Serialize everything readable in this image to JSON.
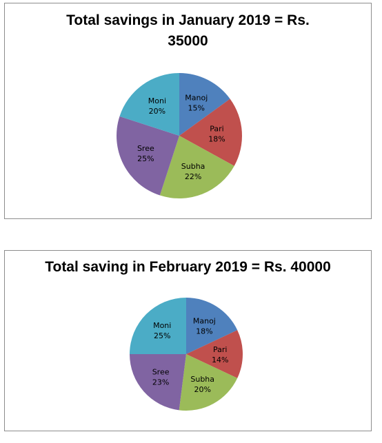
{
  "chart_data": [
    {
      "type": "pie",
      "title": "Total savings in January 2019 = Rs. 35000",
      "categories": [
        "Manoj",
        "Pari",
        "Subha",
        "Sree",
        "Moni"
      ],
      "values": [
        15,
        18,
        22,
        25,
        20
      ],
      "value_labels": [
        "15%",
        "18%",
        "22%",
        "25%",
        "20%"
      ],
      "colors": [
        "#4f81bd",
        "#c0504d",
        "#9bbb59",
        "#8064a2",
        "#4bacc6"
      ]
    },
    {
      "type": "pie",
      "title": "Total saving in February 2019 = Rs. 40000",
      "categories": [
        "Manoj",
        "Pari",
        "Subha",
        "Sree",
        "Moni"
      ],
      "values": [
        18,
        14,
        20,
        23,
        25
      ],
      "value_labels": [
        "18%",
        "14%",
        "20%",
        "23%",
        "25%"
      ],
      "colors": [
        "#4f81bd",
        "#c0504d",
        "#9bbb59",
        "#8064a2",
        "#4bacc6"
      ]
    }
  ]
}
